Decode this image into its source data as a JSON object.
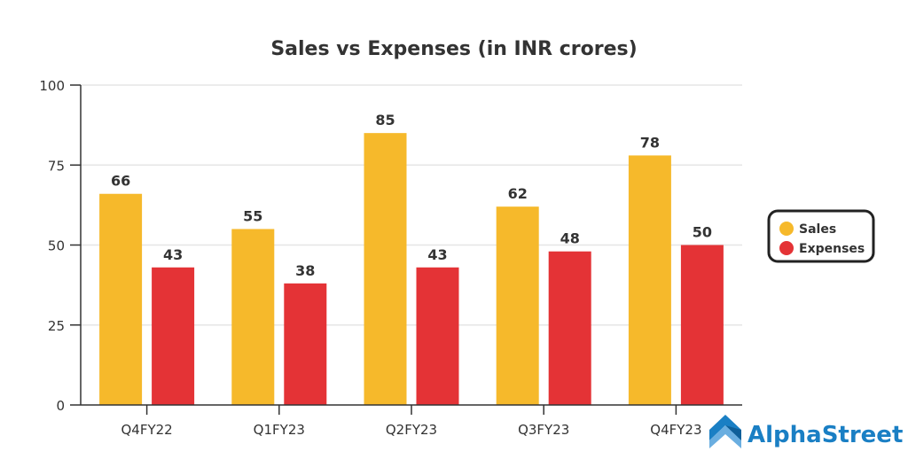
{
  "chart_data": {
    "type": "bar",
    "title": "Sales vs Expenses (in INR crores)",
    "xlabel": "",
    "ylabel": "",
    "categories": [
      "Q4FY22",
      "Q1FY23",
      "Q2FY23",
      "Q3FY23",
      "Q4FY23"
    ],
    "series": [
      {
        "name": "Sales",
        "color": "#F6B92B",
        "values": [
          66,
          55,
          85,
          62,
          78
        ]
      },
      {
        "name": "Expenses",
        "color": "#E43336",
        "values": [
          43,
          38,
          43,
          48,
          50
        ]
      }
    ],
    "ylim": [
      0,
      100
    ],
    "yticks": [
      0,
      25,
      50,
      75,
      100
    ],
    "grid": true,
    "legend_position": "right",
    "data_labels": true
  },
  "branding": {
    "name": "AlphaStreet",
    "color": "#1a7fc4",
    "icon": "chevron-up-logo-icon"
  }
}
